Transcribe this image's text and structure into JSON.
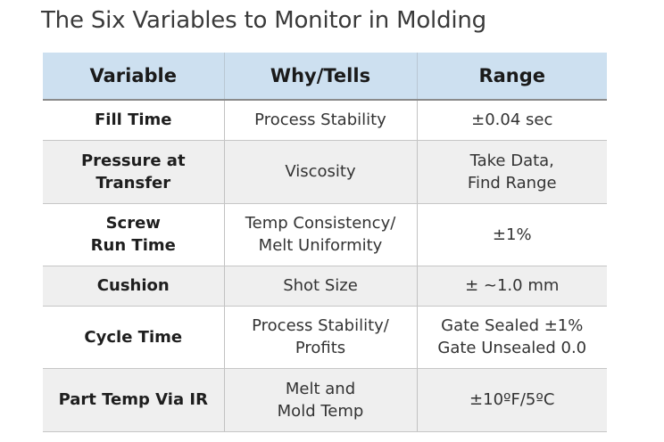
{
  "title": "The Six Variables to Monitor in Molding",
  "table": {
    "headers": [
      "Variable",
      "Why/Tells",
      "Range"
    ],
    "rows": [
      {
        "variable": [
          "Fill Time"
        ],
        "why": [
          "Process Stability"
        ],
        "range": [
          "±0.04 sec"
        ]
      },
      {
        "variable": [
          "Pressure at",
          "Transfer"
        ],
        "why": [
          "Viscosity"
        ],
        "range": [
          "Take Data,",
          "Find Range"
        ]
      },
      {
        "variable": [
          "Screw",
          "Run Time"
        ],
        "why": [
          "Temp Consistency/",
          "Melt Uniformity"
        ],
        "range": [
          "±1%"
        ]
      },
      {
        "variable": [
          "Cushion"
        ],
        "why": [
          "Shot Size"
        ],
        "range": [
          "± ~1.0 mm"
        ]
      },
      {
        "variable": [
          "Cycle Time"
        ],
        "why": [
          "Process Stability/",
          "Profits"
        ],
        "range": [
          "Gate Sealed ±1%",
          "Gate Unsealed 0.0"
        ]
      },
      {
        "variable": [
          "Part Temp Via IR"
        ],
        "why": [
          "Melt and",
          "Mold Temp"
        ],
        "range": [
          "±10ºF/5ºC"
        ]
      }
    ]
  }
}
